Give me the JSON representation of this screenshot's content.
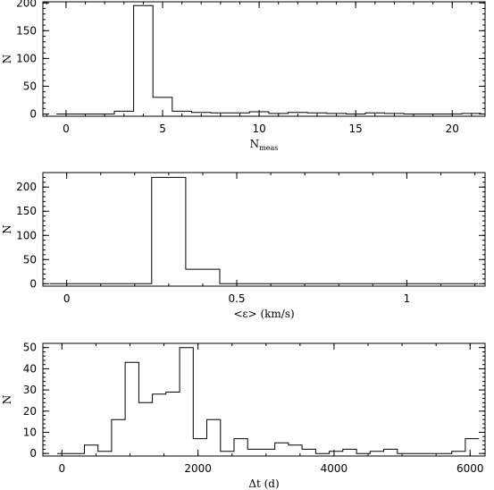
{
  "chart_data": [
    {
      "type": "histogram",
      "xlabel": "N",
      "xlabel_sub": "meas",
      "ylabel": "N",
      "xlim": [
        -1.2,
        21.7
      ],
      "ylim": [
        -4,
        202
      ],
      "xticks": [
        0,
        5,
        10,
        15,
        20
      ],
      "xtick_labels": [
        "0",
        "5",
        "10",
        "15",
        "20"
      ],
      "yticks": [
        0,
        50,
        100,
        150,
        200
      ],
      "ytick_labels": [
        "0",
        "50",
        "100",
        "150",
        "200"
      ],
      "x_minor_step": 1,
      "y_minor_step": 10,
      "bins": {
        "edges": [
          -0.5,
          0.5,
          1.5,
          2.5,
          3.5,
          4.5,
          5.5,
          6.5,
          7.5,
          8.5,
          9.5,
          10.5,
          11.5,
          12.5,
          13.5,
          14.5,
          15.5,
          16.5,
          17.5,
          18.5,
          19.5,
          20.5,
          21.5
        ],
        "counts": [
          0,
          0,
          0,
          5,
          195,
          30,
          5,
          3,
          2,
          2,
          4,
          1,
          3,
          2,
          1,
          0,
          2,
          1,
          0,
          0,
          0,
          1
        ]
      }
    },
    {
      "type": "histogram",
      "xlabel": "<ε> (km/s)",
      "ylabel": "N",
      "xlim": [
        -0.07,
        1.23
      ],
      "ylim": [
        -5,
        230
      ],
      "xticks": [
        0,
        0.5,
        1
      ],
      "xtick_labels": [
        "0",
        "0.5",
        "1"
      ],
      "yticks": [
        0,
        50,
        100,
        150,
        200
      ],
      "ytick_labels": [
        "0",
        "50",
        "100",
        "150",
        "200"
      ],
      "x_minor_step": 0.1,
      "y_minor_step": 10,
      "bins": {
        "edges": [
          -0.05,
          0.05,
          0.15,
          0.25,
          0.35,
          0.45,
          0.55,
          0.65,
          0.75,
          0.85,
          0.95,
          1.05,
          1.15,
          1.21
        ],
        "counts": [
          0,
          0,
          0,
          220,
          30,
          0,
          0,
          0,
          0,
          0,
          0,
          0,
          0
        ]
      }
    },
    {
      "type": "histogram",
      "xlabel": "Δt (d)",
      "ylabel": "N",
      "xlim": [
        -280,
        6220
      ],
      "ylim": [
        -1.2,
        52
      ],
      "xticks": [
        0,
        2000,
        4000,
        6000
      ],
      "xtick_labels": [
        "0",
        "2000",
        "4000",
        "6000"
      ],
      "yticks": [
        0,
        10,
        20,
        30,
        40,
        50
      ],
      "ytick_labels": [
        "0",
        "10",
        "20",
        "30",
        "40",
        "50"
      ],
      "x_minor_step": 500,
      "y_minor_step": 2,
      "bins": {
        "edges": [
          -70,
          130,
          330,
          530,
          730,
          930,
          1130,
          1330,
          1530,
          1730,
          1930,
          2130,
          2330,
          2530,
          2730,
          2930,
          3130,
          3330,
          3530,
          3730,
          3930,
          4130,
          4330,
          4530,
          4730,
          4930,
          5130,
          5330,
          5530,
          5730,
          5930,
          6130
        ],
        "counts": [
          0,
          0,
          4,
          1,
          16,
          43,
          24,
          28,
          29,
          50,
          7,
          16,
          1,
          7,
          2,
          2,
          5,
          4,
          2,
          0,
          1,
          2,
          0,
          1,
          2,
          0,
          0,
          0,
          0,
          1,
          7
        ]
      }
    }
  ]
}
